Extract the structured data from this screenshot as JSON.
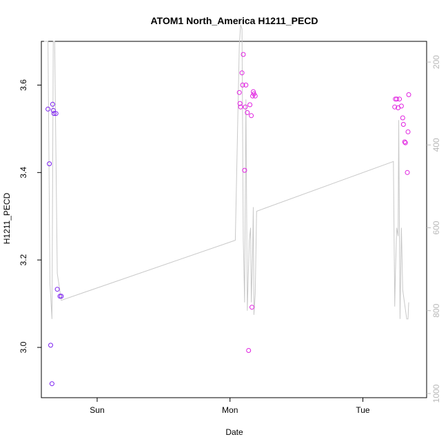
{
  "chart_data": {
    "type": "scatter",
    "title": "ATOM1 North_America H1211_PECD",
    "xlabel": "Date",
    "ylabel": "H1211_PECD",
    "x_tick_labels": [
      "Sun",
      "Mon",
      "Tue"
    ],
    "x_tick_positions": [
      0.4,
      1.4,
      2.4
    ],
    "xlim": [
      -0.02,
      2.88
    ],
    "ylim": [
      2.885,
      3.7
    ],
    "y_ticks": [
      3.0,
      3.2,
      3.4,
      3.6
    ],
    "y_tick_labels": [
      "3.0",
      "3.2",
      "3.4",
      "3.6"
    ],
    "y2_ticks": [
      200,
      400,
      600,
      800,
      1000
    ],
    "y2_tick_labels": [
      "200",
      "400",
      "600",
      "800",
      "1000"
    ],
    "y2lim_reversed": [
      1010,
      150
    ],
    "grid": false,
    "colors": {
      "line": "#c8c8c8",
      "points_early": "#7a1cf0",
      "points_late": "#e020e0",
      "axis": "#000000",
      "right_axis": "#b8b8b8"
    },
    "series": [
      {
        "values_x": [
          0.03,
          0.04,
          0.05,
          0.06,
          0.065,
          0.07,
          0.075,
          0.09,
          0.1,
          0.12,
          0.13
        ],
        "values_y": [
          3.545,
          3.42,
          3.005,
          2.917,
          3.556,
          3.542,
          3.535,
          3.535,
          3.133,
          3.117,
          3.117
        ],
        "marker": "circle",
        "color_key": "points_early"
      },
      {
        "values_x": [
          1.47,
          1.475,
          1.48,
          1.49,
          1.495,
          1.5,
          1.51,
          1.515,
          1.52,
          1.53,
          1.54,
          1.55,
          1.56,
          1.565,
          1.57,
          1.575,
          1.58,
          1.59
        ],
        "values_y": [
          3.583,
          3.558,
          3.55,
          3.628,
          3.6,
          3.67,
          3.405,
          3.55,
          3.6,
          3.537,
          2.993,
          3.555,
          3.53,
          3.092,
          3.575,
          3.585,
          3.58,
          3.575
        ],
        "marker": "circle",
        "color_key": "points_late"
      },
      {
        "values_x": [
          2.64,
          2.645,
          2.655,
          2.665,
          2.675,
          2.69,
          2.7,
          2.705,
          2.715,
          2.72,
          2.735,
          2.74
        ],
        "values_y": [
          3.55,
          3.568,
          3.568,
          3.548,
          3.568,
          3.552,
          3.525,
          3.51,
          3.47,
          3.468,
          3.4,
          3.493
        ],
        "marker": "circle",
        "color_key": "points_late"
      },
      {
        "values_x": [
          2.745
        ],
        "values_y": [
          3.578
        ],
        "marker": "circle",
        "color_key": "points_late"
      }
    ],
    "secondary_series": {
      "name": "",
      "axis": "right",
      "x": [
        0.0,
        0.03,
        0.045,
        0.06,
        0.07,
        0.08,
        0.1,
        0.13,
        1.44,
        1.47,
        1.48,
        1.49,
        1.5,
        1.51,
        1.52,
        1.53,
        1.545,
        1.555,
        1.56,
        1.57,
        1.575,
        1.58,
        1.59,
        1.6,
        2.63,
        2.64,
        2.645,
        2.655,
        2.665,
        2.67,
        2.68,
        2.69,
        2.7,
        2.715,
        2.73,
        2.74,
        2.745
      ],
      "y": [
        150,
        150,
        735,
        820,
        150,
        150,
        710,
        775,
        630,
        160,
        110,
        120,
        630,
        780,
        290,
        800,
        630,
        600,
        780,
        660,
        550,
        810,
        760,
        560,
        440,
        790,
        710,
        600,
        620,
        340,
        820,
        600,
        750,
        785,
        820,
        820,
        780
      ]
    }
  }
}
